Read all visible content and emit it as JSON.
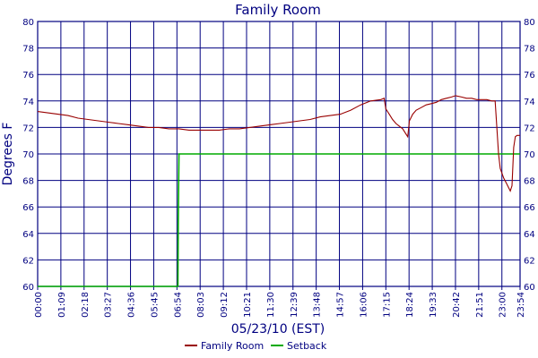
{
  "chart_data": {
    "type": "line",
    "title": "Family Room",
    "xlabel": "05/23/10 (EST)",
    "ylabel": "Degrees F",
    "ylim": [
      60,
      80
    ],
    "yticks": [
      60,
      62,
      64,
      66,
      68,
      70,
      72,
      74,
      76,
      78,
      80
    ],
    "xlim": [
      "00:00",
      "23:54"
    ],
    "xticks": [
      "00:00",
      "01:09",
      "02:18",
      "03:27",
      "04:36",
      "05:45",
      "06:54",
      "08:03",
      "09:12",
      "10:21",
      "11:30",
      "12:39",
      "13:48",
      "14:57",
      "16:06",
      "17:15",
      "18:24",
      "19:33",
      "20:42",
      "21:51",
      "23:00",
      "23:54"
    ],
    "grid": true,
    "legend_position": "bottom",
    "series": [
      {
        "name": "Family Room",
        "color": "#990000",
        "points": [
          [
            "00:00",
            73.2
          ],
          [
            "00:30",
            73.1
          ],
          [
            "01:00",
            73.0
          ],
          [
            "01:30",
            72.9
          ],
          [
            "02:00",
            72.7
          ],
          [
            "02:30",
            72.6
          ],
          [
            "03:00",
            72.5
          ],
          [
            "03:30",
            72.4
          ],
          [
            "04:00",
            72.3
          ],
          [
            "04:30",
            72.2
          ],
          [
            "05:00",
            72.1
          ],
          [
            "05:30",
            72.0
          ],
          [
            "06:00",
            72.0
          ],
          [
            "06:30",
            71.9
          ],
          [
            "07:00",
            71.9
          ],
          [
            "07:30",
            71.8
          ],
          [
            "08:00",
            71.8
          ],
          [
            "08:30",
            71.8
          ],
          [
            "09:00",
            71.8
          ],
          [
            "09:30",
            71.9
          ],
          [
            "10:00",
            71.9
          ],
          [
            "10:30",
            72.0
          ],
          [
            "11:00",
            72.1
          ],
          [
            "11:30",
            72.2
          ],
          [
            "12:00",
            72.3
          ],
          [
            "12:30",
            72.4
          ],
          [
            "13:00",
            72.5
          ],
          [
            "13:30",
            72.6
          ],
          [
            "14:00",
            72.8
          ],
          [
            "14:30",
            72.9
          ],
          [
            "15:00",
            73.0
          ],
          [
            "15:30",
            73.3
          ],
          [
            "16:00",
            73.7
          ],
          [
            "16:30",
            74.0
          ],
          [
            "17:00",
            74.1
          ],
          [
            "17:10",
            74.2
          ],
          [
            "17:15",
            73.4
          ],
          [
            "17:25",
            73.0
          ],
          [
            "17:35",
            72.6
          ],
          [
            "17:45",
            72.3
          ],
          [
            "17:55",
            72.1
          ],
          [
            "18:05",
            71.9
          ],
          [
            "18:15",
            71.5
          ],
          [
            "18:20",
            71.3
          ],
          [
            "18:25",
            72.5
          ],
          [
            "18:35",
            73.0
          ],
          [
            "18:45",
            73.3
          ],
          [
            "19:00",
            73.5
          ],
          [
            "19:15",
            73.7
          ],
          [
            "19:30",
            73.8
          ],
          [
            "19:45",
            73.9
          ],
          [
            "20:00",
            74.1
          ],
          [
            "20:15",
            74.2
          ],
          [
            "20:30",
            74.3
          ],
          [
            "20:42",
            74.4
          ],
          [
            "21:00",
            74.3
          ],
          [
            "21:15",
            74.2
          ],
          [
            "21:30",
            74.2
          ],
          [
            "21:45",
            74.1
          ],
          [
            "22:00",
            74.1
          ],
          [
            "22:15",
            74.1
          ],
          [
            "22:30",
            74.0
          ],
          [
            "22:40",
            74.0
          ],
          [
            "22:45",
            72.0
          ],
          [
            "22:50",
            70.0
          ],
          [
            "22:55",
            68.9
          ],
          [
            "23:05",
            68.2
          ],
          [
            "23:15",
            67.7
          ],
          [
            "23:25",
            67.2
          ],
          [
            "23:30",
            67.6
          ],
          [
            "23:35",
            70.5
          ],
          [
            "23:40",
            71.3
          ],
          [
            "23:45",
            71.4
          ],
          [
            "23:54",
            71.4
          ]
        ]
      },
      {
        "name": "Setback",
        "color": "#00aa00",
        "points": [
          [
            "00:00",
            60
          ],
          [
            "06:57",
            60
          ],
          [
            "06:58",
            65
          ],
          [
            "07:00",
            70
          ],
          [
            "23:54",
            70
          ]
        ]
      }
    ]
  }
}
